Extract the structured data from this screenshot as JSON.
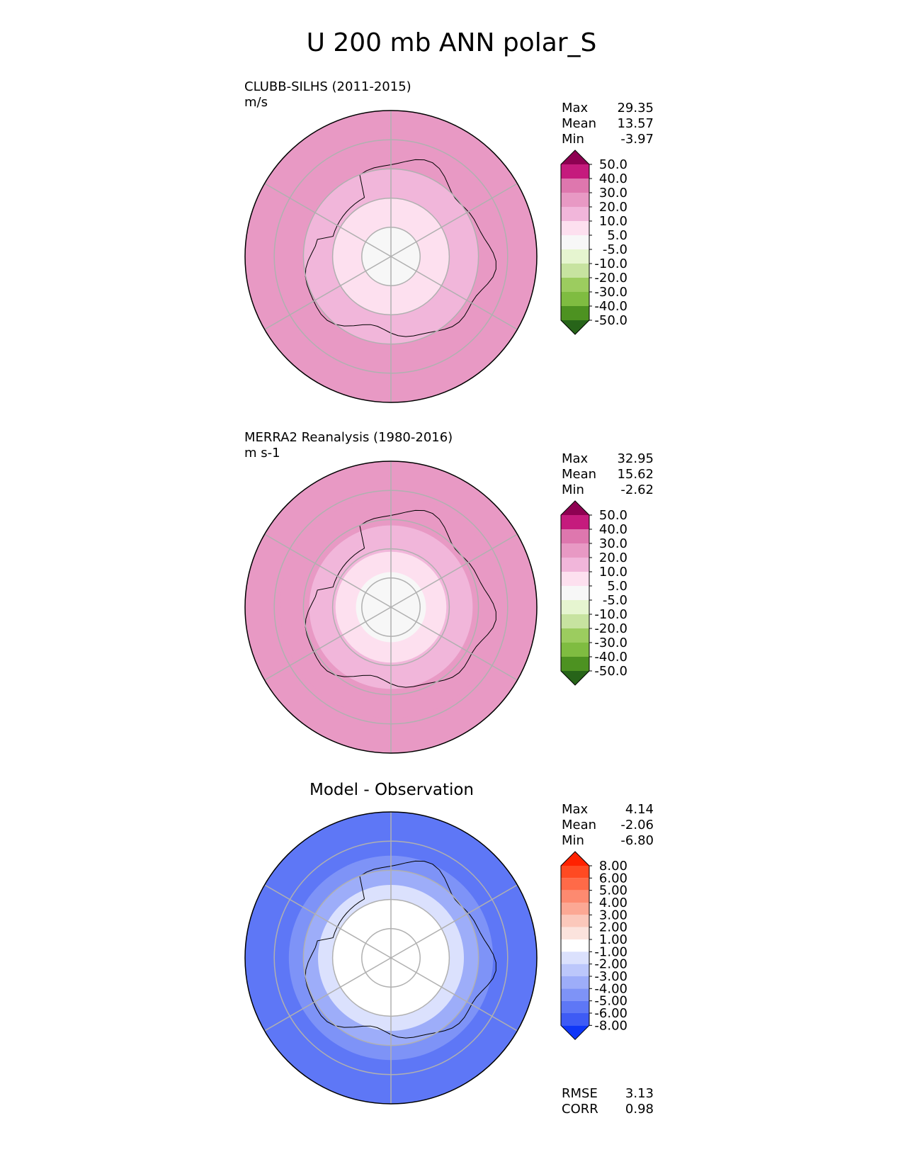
{
  "title": "U 200 mb ANN polar_S",
  "chart_data": [
    {
      "type": "polar_contour",
      "name": "test",
      "title_line1": "CLUBB-SILHS (2011-2015)",
      "title_line2": "m/s",
      "stats": [
        {
          "label": "Max",
          "value": "29.35"
        },
        {
          "label": "Mean",
          "value": "13.57"
        },
        {
          "label": "Min",
          "value": "-3.97"
        }
      ],
      "colorbar": {
        "ticks": [
          "50.0",
          "40.0",
          "30.0",
          "20.0",
          "10.0",
          "5.0",
          "-5.0",
          "-10.0",
          "-20.0",
          "-30.0",
          "-40.0",
          "-50.0"
        ],
        "colors": [
          "#8e0152",
          "#c51b7d",
          "#de77ae",
          "#e899c4",
          "#f1b6da",
          "#fde0ef",
          "#f7f7f7",
          "#e6f5d0",
          "#c7e3a0",
          "#9ccc5f",
          "#7fbc41",
          "#4d9221",
          "#276419"
        ]
      },
      "rings": [
        {
          "lat": -50,
          "color": "#e899c4"
        },
        {
          "lat": -60,
          "color": "#f1b6da"
        },
        {
          "lat": -70,
          "color": "#fde0ef"
        },
        {
          "lat": -80,
          "color": "#f7f7f7"
        }
      ]
    },
    {
      "type": "polar_contour",
      "name": "reference",
      "title_line1": "MERRA2 Reanalysis (1980-2016)",
      "title_line2": "m s-1",
      "stats": [
        {
          "label": "Max",
          "value": "32.95"
        },
        {
          "label": "Mean",
          "value": "15.62"
        },
        {
          "label": "Min",
          "value": "-2.62"
        }
      ],
      "colorbar": {
        "ticks": [
          "50.0",
          "40.0",
          "30.0",
          "20.0",
          "10.0",
          "5.0",
          "-5.0",
          "-10.0",
          "-20.0",
          "-30.0",
          "-40.0",
          "-50.0"
        ],
        "colors": [
          "#8e0152",
          "#c51b7d",
          "#de77ae",
          "#e899c4",
          "#f1b6da",
          "#fde0ef",
          "#f7f7f7",
          "#e6f5d0",
          "#c7e3a0",
          "#9ccc5f",
          "#7fbc41",
          "#4d9221",
          "#276419"
        ]
      },
      "rings": [
        {
          "lat": -52,
          "color": "#e899c4"
        },
        {
          "lat": -62,
          "color": "#f1b6da"
        },
        {
          "lat": -71,
          "color": "#fde0ef"
        },
        {
          "lat": -78,
          "color": "#f7f7f7"
        }
      ]
    },
    {
      "type": "polar_contour",
      "name": "difference",
      "title_center": "Model - Observation",
      "stats": [
        {
          "label": "Max",
          "value": "4.14"
        },
        {
          "label": "Mean",
          "value": "-2.06"
        },
        {
          "label": "Min",
          "value": "-6.80"
        }
      ],
      "colorbar": {
        "ticks": [
          "8.00",
          "6.00",
          "5.00",
          "4.00",
          "3.00",
          "2.00",
          "1.00",
          "-1.00",
          "-2.00",
          "-3.00",
          "-4.00",
          "-5.00",
          "-6.00",
          "-8.00"
        ],
        "colors": [
          "#ff2200",
          "#ff4a22",
          "#ff6a48",
          "#fd8a70",
          "#fca894",
          "#fbc8bb",
          "#fbe3dd",
          "#ffffff",
          "#dbe1fd",
          "#bcc7fb",
          "#9dadf9",
          "#7e93f7",
          "#5e77f6",
          "#3e5bf5",
          "#0f36f7"
        ]
      },
      "rings": [
        {
          "lat": -50,
          "color": "#5e77f6"
        },
        {
          "lat": -55,
          "color": "#7e93f7"
        },
        {
          "lat": -60,
          "color": "#9dadf9"
        },
        {
          "lat": -65,
          "color": "#dbe1fd"
        },
        {
          "lat": -70,
          "color": "#ffffff"
        }
      ],
      "rmse": "3.13",
      "corr": "0.98"
    }
  ],
  "metric_labels": {
    "rmse": "RMSE",
    "corr": "CORR"
  }
}
